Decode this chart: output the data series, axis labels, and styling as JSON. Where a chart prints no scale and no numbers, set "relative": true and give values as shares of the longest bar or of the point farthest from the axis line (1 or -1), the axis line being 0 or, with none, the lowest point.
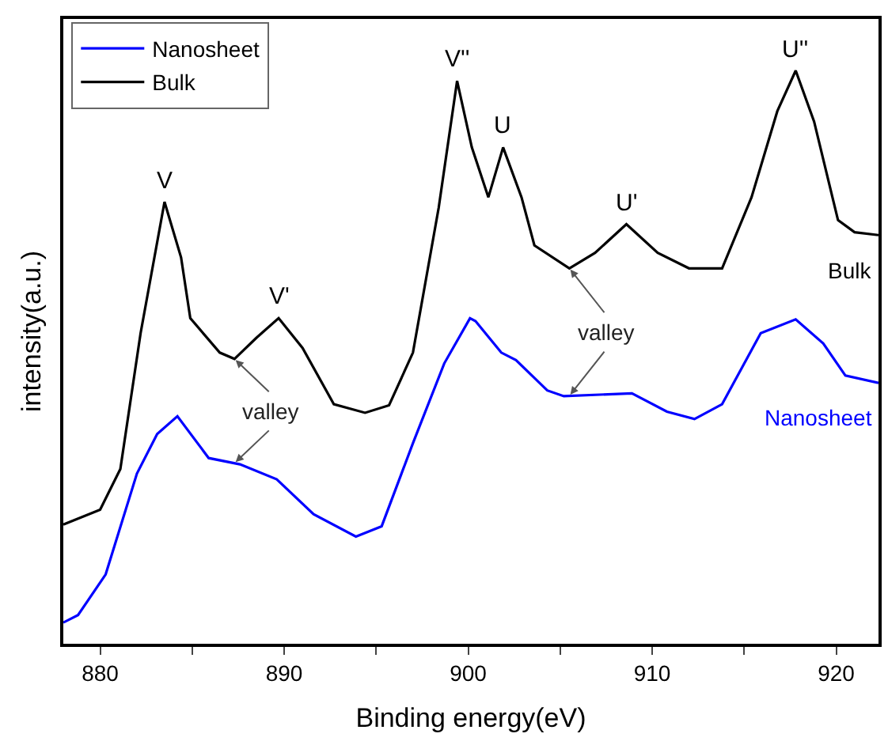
{
  "chart_data": {
    "type": "line",
    "relative": true,
    "xlabel": "Binding energy(eV)",
    "ylabel": "intensity(a.u.)",
    "xlim": [
      878.0,
      922.3
    ],
    "xticks": [
      880,
      {
        "value": 885,
        "label": null
      },
      890,
      {
        "value": 895,
        "label": null
      },
      900,
      {
        "value": 905,
        "label": null
      },
      910,
      {
        "value": 915,
        "label": null
      },
      920
    ],
    "legend": "top left",
    "marker": "none",
    "line_style": "solid",
    "series": [
      {
        "name": "Nanosheet",
        "color": "#0000ff",
        "x": [
          878.0,
          878.8,
          880.3,
          882.0,
          883.1,
          884.2,
          885.9,
          887.6,
          889.6,
          891.6,
          893.9,
          895.3,
          897.0,
          898.7,
          900.1,
          900.4,
          901.8,
          902.6,
          904.3,
          905.2,
          908.9,
          910.8,
          912.3,
          913.8,
          915.9,
          917.8,
          919.3,
          920.5,
          922.3
        ],
        "values": [
          0.037,
          0.05,
          0.121,
          0.297,
          0.366,
          0.397,
          0.324,
          0.313,
          0.287,
          0.226,
          0.187,
          0.205,
          0.35,
          0.489,
          0.568,
          0.563,
          0.508,
          0.495,
          0.442,
          0.432,
          0.437,
          0.405,
          0.392,
          0.418,
          0.542,
          0.566,
          0.524,
          0.468,
          0.455
        ]
      },
      {
        "name": "Bulk",
        "color": "#000000",
        "x": [
          878.0,
          880.0,
          881.1,
          882.2,
          883.5,
          884.4,
          884.9,
          886.5,
          887.3,
          888.5,
          889.7,
          891.0,
          892.7,
          894.4,
          895.7,
          897.0,
          898.4,
          899.4,
          900.2,
          901.1,
          901.9,
          902.9,
          903.6,
          905.5,
          906.9,
          908.6,
          910.3,
          912.0,
          913.8,
          915.4,
          916.8,
          917.8,
          918.8,
          920.1,
          921.0,
          922.3
        ],
        "values": [
          0.208,
          0.234,
          0.305,
          0.542,
          0.771,
          0.674,
          0.568,
          0.508,
          0.497,
          0.534,
          0.568,
          0.516,
          0.418,
          0.403,
          0.416,
          0.508,
          0.761,
          0.982,
          0.866,
          0.779,
          0.866,
          0.779,
          0.695,
          0.655,
          0.682,
          0.732,
          0.682,
          0.655,
          0.655,
          0.779,
          0.929,
          1.0,
          0.911,
          0.739,
          0.718,
          0.713
        ]
      }
    ],
    "annotations": [
      {
        "text": "V",
        "x": 883.5,
        "y": 0.771
      },
      {
        "text": "V'",
        "x": 889.7,
        "y": 0.568
      },
      {
        "text": "V''",
        "x": 899.4,
        "y": 0.982
      },
      {
        "text": "U",
        "x": 901.9,
        "y": 0.866
      },
      {
        "text": "U'",
        "x": 908.6,
        "y": 0.732
      },
      {
        "text": "U''",
        "x": 917.8,
        "y": 1.0
      },
      {
        "text": "valley",
        "x": 887.3,
        "y": 0.497
      },
      {
        "text": "valley",
        "x": 905.5,
        "y": 0.655
      }
    ]
  }
}
